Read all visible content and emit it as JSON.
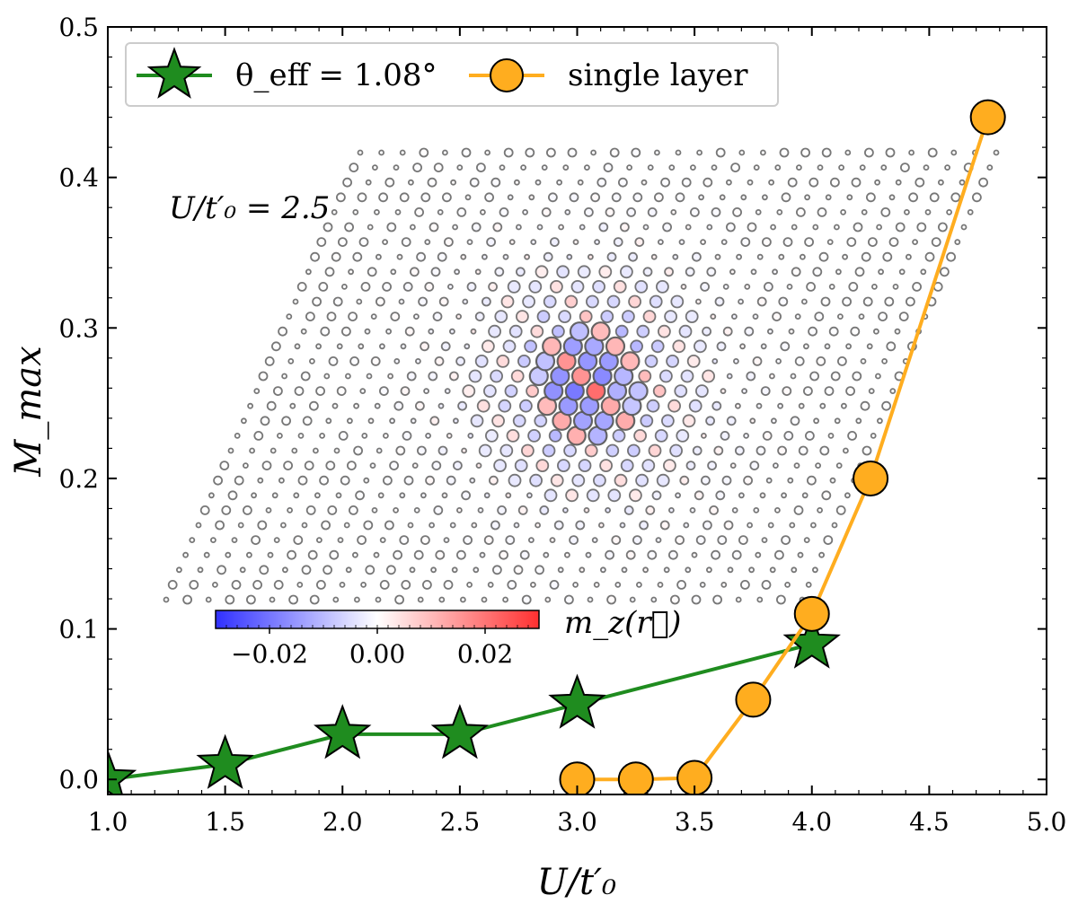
{
  "chart_data": {
    "type": "line",
    "xlabel": "U/t′₀",
    "ylabel": "M_max",
    "xlim": [
      1.0,
      5.0
    ],
    "ylim": [
      -0.01,
      0.5
    ],
    "xticks": [
      "1.0",
      "1.5",
      "2.0",
      "2.5",
      "3.0",
      "3.5",
      "4.0",
      "4.5",
      "5.0"
    ],
    "yticks": [
      "0.0",
      "0.1",
      "0.2",
      "0.3",
      "0.4",
      "0.5"
    ],
    "legend_position": "top-left",
    "series": [
      {
        "name": "θ_eff = 1.08°",
        "marker": "star",
        "color": "#1f8c1f",
        "x": [
          1.0,
          1.5,
          2.0,
          2.5,
          3.0,
          4.0
        ],
        "y": [
          0.0,
          0.01,
          0.03,
          0.03,
          0.05,
          0.09
        ]
      },
      {
        "name": "single layer",
        "marker": "circle",
        "color": "#ffad1f",
        "x": [
          3.0,
          3.25,
          3.5,
          3.75,
          4.0,
          4.25,
          4.75
        ],
        "y": [
          0.0,
          0.0,
          0.001,
          0.053,
          0.11,
          0.2,
          0.44
        ]
      }
    ],
    "inset": {
      "label": "U/t′₀ = 2.5",
      "description": "moiré lattice magnetization map",
      "colorbar": {
        "label": "m_z(r⃗)",
        "range": [
          -0.03,
          0.03
        ],
        "ticks": [
          "−0.02",
          "0.00",
          "0.02"
        ],
        "colors": [
          "#3030ff",
          "#ffffff",
          "#ff3030"
        ]
      }
    }
  }
}
